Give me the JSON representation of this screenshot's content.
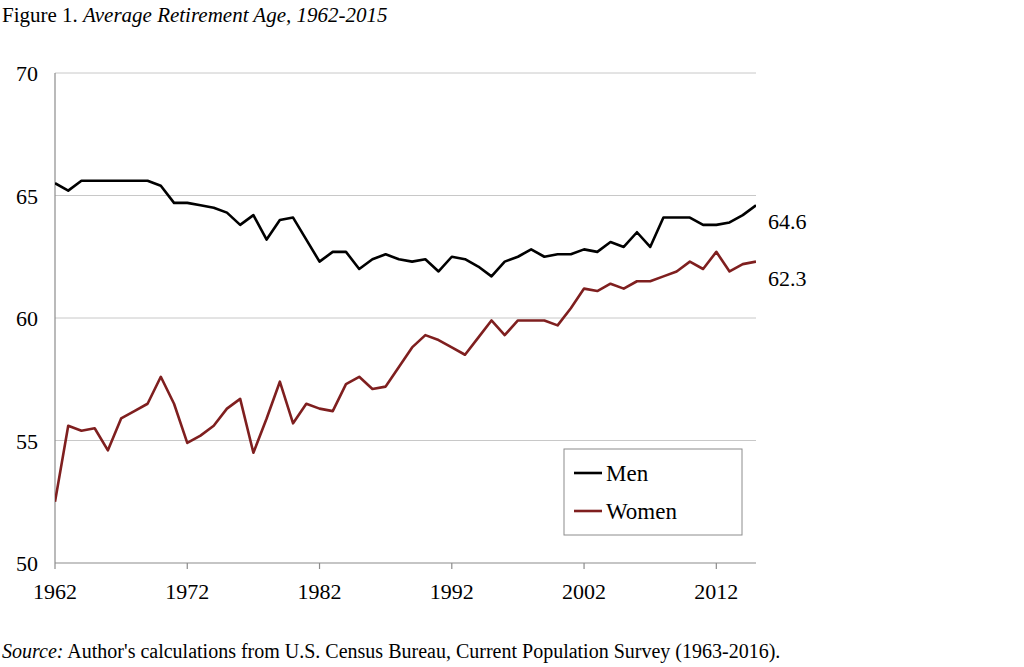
{
  "chart_data": {
    "type": "line",
    "title": "Figure 1. Average Retirement Age, 1962-2015",
    "source": "Source: Author's calculations from U.S. Census Bureau, Current Population Survey (1963-2016).",
    "x": [
      1962,
      1963,
      1964,
      1965,
      1966,
      1967,
      1968,
      1969,
      1970,
      1971,
      1972,
      1973,
      1974,
      1975,
      1976,
      1977,
      1978,
      1979,
      1980,
      1981,
      1982,
      1983,
      1984,
      1985,
      1986,
      1987,
      1988,
      1989,
      1990,
      1991,
      1992,
      1993,
      1994,
      1995,
      1996,
      1997,
      1998,
      1999,
      2000,
      2001,
      2002,
      2003,
      2004,
      2005,
      2006,
      2007,
      2008,
      2009,
      2010,
      2011,
      2012,
      2013,
      2014,
      2015
    ],
    "series": [
      {
        "name": "Men",
        "color": "#000000",
        "values": [
          65.5,
          65.2,
          65.6,
          65.6,
          65.6,
          65.6,
          65.6,
          65.6,
          65.4,
          64.7,
          64.7,
          64.6,
          64.5,
          64.3,
          63.8,
          64.2,
          63.2,
          64.0,
          64.1,
          63.2,
          62.3,
          62.7,
          62.7,
          62.0,
          62.4,
          62.6,
          62.4,
          62.3,
          62.4,
          61.9,
          62.5,
          62.4,
          62.1,
          61.7,
          62.3,
          62.5,
          62.8,
          62.5,
          62.6,
          62.6,
          62.8,
          62.7,
          63.1,
          62.9,
          63.5,
          62.9,
          64.1,
          64.1,
          64.1,
          63.8,
          63.8,
          63.9,
          64.2,
          64.6
        ]
      },
      {
        "name": "Women",
        "color": "#7f1f1f",
        "values": [
          52.5,
          55.6,
          55.4,
          55.5,
          54.6,
          55.9,
          56.2,
          56.5,
          57.6,
          56.5,
          54.9,
          55.2,
          55.6,
          56.3,
          56.7,
          54.5,
          55.9,
          57.4,
          55.7,
          56.5,
          56.3,
          56.2,
          57.3,
          57.6,
          57.1,
          57.2,
          58.0,
          58.8,
          59.3,
          59.1,
          58.8,
          58.5,
          59.2,
          59.9,
          59.3,
          59.9,
          59.9,
          59.9,
          59.7,
          60.4,
          61.2,
          61.1,
          61.4,
          61.2,
          61.5,
          61.5,
          61.7,
          61.9,
          62.3,
          62.0,
          62.7,
          61.9,
          62.2,
          62.3
        ]
      }
    ],
    "annotations": [
      {
        "text": "64.6",
        "x": 2015,
        "y": 64.6
      },
      {
        "text": "62.3",
        "x": 2015,
        "y": 62.3
      }
    ],
    "xlim": [
      1962,
      2015
    ],
    "xticks": [
      1962,
      1972,
      1982,
      1992,
      2002,
      2012
    ],
    "ylim": [
      50,
      70
    ],
    "yticks": [
      50,
      55,
      60,
      65,
      70
    ],
    "grid": true,
    "legend": "lower-right"
  }
}
